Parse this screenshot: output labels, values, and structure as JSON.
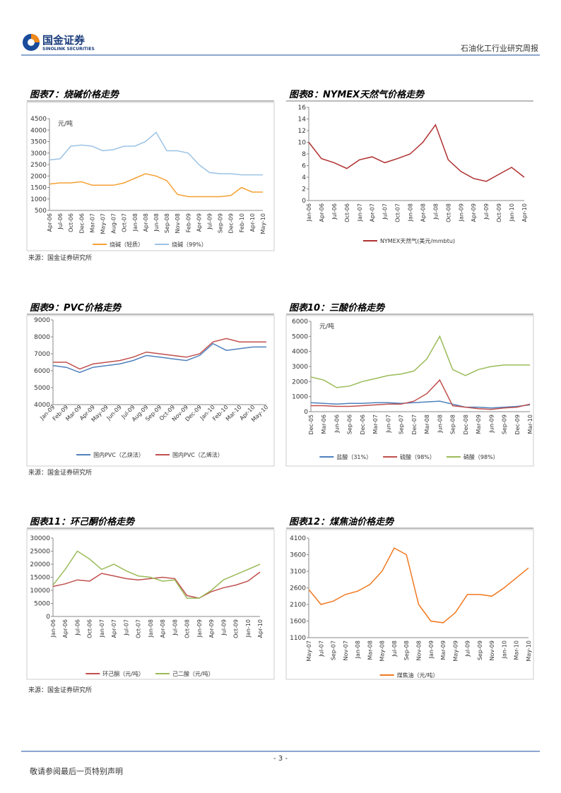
{
  "header": {
    "logo_cn": "国金证券",
    "logo_en": "SINOLINK SECURITIES",
    "report": "石油化工行业研究周报"
  },
  "chart_data": [
    {
      "type": "line",
      "title": "图表7：烧碱价格走势",
      "y_label": "元/吨",
      "categories": [
        "Apr-06",
        "Jul-06",
        "Oct-06",
        "Dec-06",
        "Mar-07",
        "May-07",
        "Aug-07",
        "Oct-07",
        "Jan-08",
        "Apr-08",
        "Jun-08",
        "Sep-08",
        "Nov-08",
        "Feb-09",
        "Apr-09",
        "Jul-09",
        "Sep-09",
        "Dec-09",
        "Feb-10",
        "Apr-10",
        "May-10"
      ],
      "series": [
        {
          "name": "烧碱（轻质）",
          "color": "#f5a033",
          "values": [
            1650,
            1700,
            1700,
            1750,
            1600,
            1600,
            1600,
            1700,
            1900,
            2100,
            2000,
            1800,
            1200,
            1100,
            1100,
            1100,
            1100,
            1150,
            1500,
            1300,
            1300
          ]
        },
        {
          "name": "烧碱（99%）",
          "color": "#9cc3e6",
          "values": [
            2700,
            2750,
            3300,
            3350,
            3300,
            3100,
            3150,
            3300,
            3300,
            3500,
            3900,
            3100,
            3100,
            3000,
            2500,
            2150,
            2100,
            2100,
            2050,
            2050,
            2050
          ]
        }
      ],
      "ylim": [
        500,
        4500
      ],
      "yticks": [
        500,
        1000,
        1500,
        2000,
        2500,
        3000,
        3500,
        4000,
        4500
      ]
    },
    {
      "type": "line",
      "title": "图表8：NYMEX天然气价格走势",
      "categories": [
        "Jan-06",
        "Apr-06",
        "Jul-06",
        "Oct-06",
        "Jan-07",
        "Apr-07",
        "Jul-07",
        "Oct-07",
        "Jan-08",
        "Apr-08",
        "Jul-08",
        "Oct-08",
        "Jan-09",
        "Apr-09",
        "Jul-09",
        "Oct-09",
        "Jan-10",
        "Apr-10"
      ],
      "series": [
        {
          "name": "NYMEX天然气(美元/mmbtu)",
          "color": "#b03030",
          "values": [
            10,
            7.2,
            6.5,
            5.5,
            7,
            7.5,
            6.5,
            7.2,
            8,
            10,
            13,
            7,
            5,
            3.8,
            3.3,
            4.5,
            5.7,
            4
          ]
        }
      ],
      "ylim": [
        0,
        16
      ],
      "yticks": [
        0,
        2,
        4,
        6,
        8,
        10,
        12,
        14,
        16
      ]
    },
    {
      "type": "line",
      "title": "图表9：PVC价格走势",
      "categories": [
        "Jan-09",
        "Feb-09",
        "Mar-09",
        "Apr-09",
        "May-09",
        "Jun-09",
        "Jul-09",
        "Aug-09",
        "Sep-09",
        "Oct-09",
        "Nov-09",
        "Dec-09",
        "Jan-10",
        "Feb-10",
        "Mar-10",
        "Apr-10",
        "May-10"
      ],
      "series": [
        {
          "name": "国内PVC（乙炔法）",
          "color": "#4f81bd",
          "values": [
            6300,
            6200,
            5900,
            6200,
            6300,
            6400,
            6600,
            6900,
            6800,
            6700,
            6600,
            6900,
            7600,
            7200,
            7300,
            7400,
            7400
          ]
        },
        {
          "name": "国内PVC（乙烯法）",
          "color": "#c0504d",
          "values": [
            6500,
            6500,
            6100,
            6400,
            6500,
            6600,
            6800,
            7100,
            7000,
            6900,
            6800,
            7000,
            7700,
            7900,
            7700,
            7700,
            7700
          ]
        }
      ],
      "ylim": [
        4000,
        9000
      ],
      "yticks": [
        4000,
        5000,
        6000,
        7000,
        8000,
        9000
      ]
    },
    {
      "type": "line",
      "title": "图表10：三酸价格走势",
      "y_label": "元/吨",
      "categories": [
        "Dec-05",
        "Mar-06",
        "Jun-06",
        "Sep-06",
        "Dec-06",
        "Mar-07",
        "Jun-07",
        "Sep-07",
        "Dec-07",
        "Mar-08",
        "Jun-08",
        "Sep-08",
        "Dec-08",
        "Mar-09",
        "Jun-09",
        "Sep-09",
        "Dec-09",
        "Mar-10"
      ],
      "series": [
        {
          "name": "盐酸（31%）",
          "color": "#4f81bd",
          "values": [
            600,
            550,
            500,
            550,
            550,
            600,
            600,
            550,
            600,
            650,
            700,
            500,
            300,
            300,
            250,
            300,
            350,
            450
          ]
        },
        {
          "name": "硫酸（98%）",
          "color": "#c0504d",
          "values": [
            400,
            400,
            350,
            350,
            400,
            450,
            500,
            500,
            700,
            1200,
            2100,
            400,
            300,
            200,
            150,
            250,
            300,
            500
          ]
        },
        {
          "name": "硝酸（98%）",
          "color": "#9bbb59",
          "values": [
            2300,
            2100,
            1600,
            1700,
            2000,
            2200,
            2400,
            2500,
            2700,
            3500,
            5000,
            2800,
            2400,
            2800,
            3000,
            3100,
            3100,
            3100
          ]
        }
      ],
      "ylim": [
        0,
        6000
      ],
      "yticks": [
        0,
        1000,
        2000,
        3000,
        4000,
        5000,
        6000
      ]
    },
    {
      "type": "line",
      "title": "图表11：环己酮价格走势",
      "categories": [
        "Jan-06",
        "Apr-06",
        "Jul-06",
        "Oct-06",
        "Jan-07",
        "Apr-07",
        "Jul-07",
        "Oct-07",
        "Jan-08",
        "Apr-08",
        "Jul-08",
        "Oct-08",
        "Jan-09",
        "Apr-09",
        "Jul-09",
        "Oct-09",
        "Jan-10",
        "Apr-10"
      ],
      "series": [
        {
          "name": "环己酮（元/吨）",
          "color": "#c0504d",
          "values": [
            11500,
            12500,
            14000,
            13500,
            16500,
            15500,
            14500,
            14000,
            14500,
            15000,
            14500,
            8000,
            7000,
            9500,
            11000,
            12000,
            13500,
            17000
          ]
        },
        {
          "name": "己二酸（元/吨）",
          "color": "#9bbb59",
          "values": [
            12000,
            18000,
            25000,
            22000,
            18000,
            20000,
            17500,
            15500,
            15000,
            13500,
            14000,
            7000,
            7000,
            10000,
            14000,
            16000,
            18000,
            20000
          ]
        }
      ],
      "ylim": [
        0,
        30000
      ],
      "yticks": [
        0,
        5000,
        10000,
        15000,
        20000,
        25000,
        30000
      ]
    },
    {
      "type": "line",
      "title": "图表12：煤焦油价格走势",
      "categories": [
        "May-07",
        "Jul-07",
        "Sep-07",
        "Nov-07",
        "Jan-08",
        "Mar-08",
        "May-08",
        "Jul-08",
        "Sep-08",
        "Nov-08",
        "Jan-09",
        "Mar-09",
        "May-09",
        "Jul-09",
        "Sep-09",
        "Nov-09",
        "Jan-10",
        "Mar-10",
        "May-10"
      ],
      "series": [
        {
          "name": "煤焦油（元/吨）",
          "color": "#f07820",
          "values": [
            2550,
            2100,
            2200,
            2400,
            2500,
            2700,
            3100,
            3800,
            3600,
            2100,
            1600,
            1550,
            1850,
            2400,
            2400,
            2350,
            2600,
            2900,
            3200
          ]
        }
      ],
      "ylim": [
        1100,
        4100
      ],
      "yticks": [
        1100,
        1600,
        2100,
        2600,
        3100,
        3600,
        4100
      ]
    }
  ],
  "sources": [
    "来源：国金证券研究所",
    "来源：国金证券研究所",
    "来源：国金证券研究所"
  ],
  "footer": {
    "page": "- 3 -",
    "disclaimer": "敬请参阅最后一页特别声明"
  }
}
